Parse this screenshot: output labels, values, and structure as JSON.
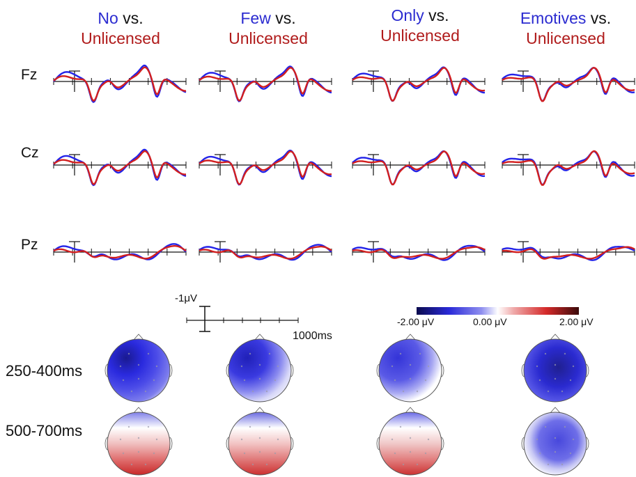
{
  "conditions": [
    {
      "name": "No",
      "vs": "vs.",
      "baseline": "Unlicensed"
    },
    {
      "name": "Few",
      "vs": "vs.",
      "baseline": "Unlicensed"
    },
    {
      "name": "Only",
      "vs": "vs.",
      "baseline": "Unlicensed"
    },
    {
      "name": "Emotives",
      "vs": "vs.",
      "baseline": "Unlicensed"
    }
  ],
  "channels": [
    "Fz",
    "Cz",
    "Pz"
  ],
  "scale_bar": {
    "amplitude": "-1μV",
    "time": "1000ms"
  },
  "colorbar": {
    "min_label": "-2.00 μV",
    "mid_label": "0.00 μV",
    "max_label": "2.00 μV"
  },
  "time_windows": [
    "250-400ms",
    "500-700ms"
  ],
  "colors": {
    "condition": "#2323e8",
    "unlicensed": "#d21f1f",
    "axis": "#111111"
  }
}
